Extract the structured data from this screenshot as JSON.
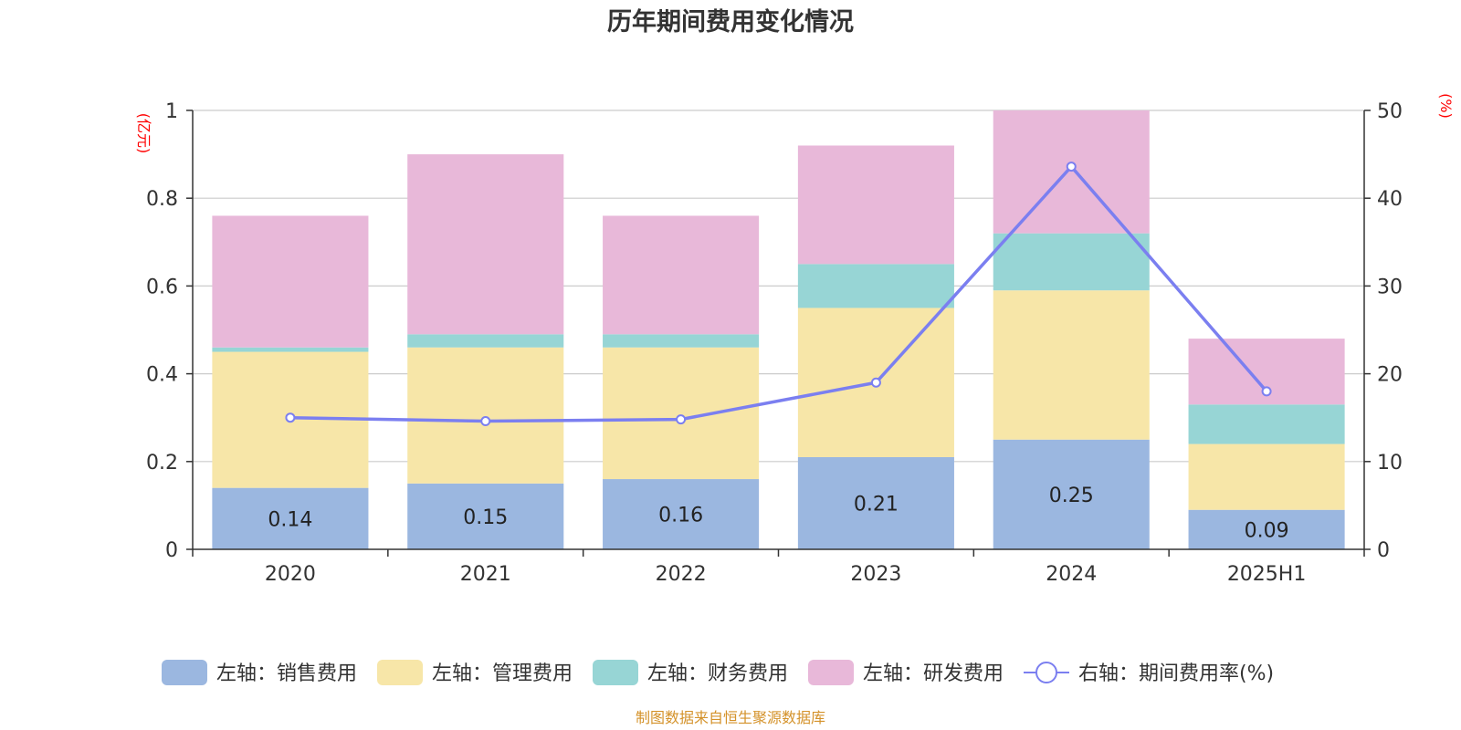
{
  "title": "历年期间费用变化情况",
  "source": "制图数据来自恒生聚源数据库",
  "chart_data": {
    "type": "bar",
    "stacked": true,
    "categories": [
      "2020",
      "2021",
      "2022",
      "2023",
      "2024",
      "2025H1"
    ],
    "series": [
      {
        "name": "左轴：销售费用",
        "axis": "left",
        "color": "#9bb7e0",
        "values": [
          0.14,
          0.15,
          0.16,
          0.21,
          0.25,
          0.09
        ],
        "labels": [
          "0.14",
          "0.15",
          "0.16",
          "0.21",
          "0.25",
          "0.09"
        ]
      },
      {
        "name": "左轴：管理费用",
        "axis": "left",
        "color": "#f7e6a8",
        "values": [
          0.31,
          0.31,
          0.3,
          0.34,
          0.34,
          0.15
        ]
      },
      {
        "name": "左轴：财务费用",
        "axis": "left",
        "color": "#97d5d5",
        "values": [
          0.01,
          0.03,
          0.03,
          0.1,
          0.13,
          0.09
        ]
      },
      {
        "name": "左轴：研发费用",
        "axis": "left",
        "color": "#e8b8d9",
        "values": [
          0.3,
          0.41,
          0.27,
          0.27,
          0.28,
          0.15
        ]
      },
      {
        "name": "右轴：期间费用率(%)",
        "axis": "right",
        "type": "line",
        "color": "#7b7ff0",
        "values": [
          15.0,
          14.6,
          14.8,
          19.0,
          43.6,
          18.0
        ]
      }
    ],
    "left_axis": {
      "unit": "(亿元)",
      "ylim": [
        0,
        1
      ],
      "ticks": [
        "0",
        "0.2",
        "0.4",
        "0.6",
        "0.8",
        "1"
      ]
    },
    "right_axis": {
      "unit": "(%)",
      "ylim": [
        0,
        50
      ],
      "ticks": [
        "0",
        "10",
        "20",
        "30",
        "40",
        "50"
      ]
    },
    "grid": true,
    "legend_position": "bottom"
  }
}
